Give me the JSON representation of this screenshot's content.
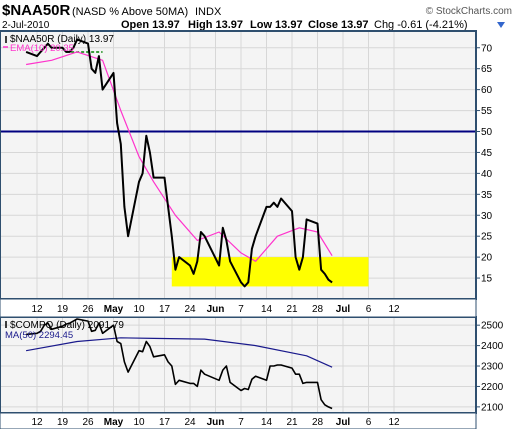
{
  "header": {
    "symbol": "$NAA50R",
    "description": "(NASD % Above 50MA)",
    "exchange": "INDX",
    "watermark": "© StockCharts.com",
    "date": "2-Jul-2010",
    "open": "Open 13.97",
    "high": "High 13.97",
    "low": "Low 13.97",
    "close": "Close 13.97",
    "chg": "Chg -0.61 (-4.21%)",
    "chg_arrow_icon": "down-triangle-icon"
  },
  "colors": {
    "frame": "#2f4f6f",
    "panel_bg": "#f4f4f4",
    "grid": "#d7d7d7",
    "price": "#000000",
    "ema": "#ff33cc",
    "ref_line": "#000080",
    "highlight": "#ffff00",
    "dashed": "#008000",
    "ma50": "#1a1a8c",
    "watermark": "#555555"
  },
  "x_axis": {
    "labels": [
      "12",
      "19",
      "26",
      "May",
      "10",
      "17",
      "24",
      "Jun",
      "7",
      "14",
      "21",
      "28",
      "Jul",
      "6",
      "12"
    ],
    "bold": [
      "May",
      "Jun",
      "Jul"
    ]
  },
  "chart_data": [
    {
      "type": "line",
      "title": "$NAA50R (Daily) 13.97",
      "legend": [
        "$NAA50R (Daily) 13.97",
        "EMA(10) 20.35"
      ],
      "ylim": [
        10,
        74
      ],
      "y_ticks": [
        15,
        20,
        25,
        30,
        35,
        40,
        45,
        50,
        55,
        60,
        65,
        70
      ],
      "reference_line": 50,
      "highlight_band": {
        "y": [
          13,
          20
        ],
        "x_start": "2010-05-19",
        "x_end": "2010-07-12"
      },
      "dashed_line": {
        "y": 69,
        "x_start": "2010-04-20",
        "x_end": "2010-04-30"
      },
      "series": [
        {
          "name": "$NAA50R (Daily) 13.97",
          "x": [
            "2010-04-09",
            "2010-04-12",
            "2010-04-13",
            "2010-04-14",
            "2010-04-15",
            "2010-04-16",
            "2010-04-19",
            "2010-04-20",
            "2010-04-21",
            "2010-04-22",
            "2010-04-23",
            "2010-04-26",
            "2010-04-27",
            "2010-04-28",
            "2010-04-29",
            "2010-04-30",
            "2010-05-03",
            "2010-05-04",
            "2010-05-05",
            "2010-05-06",
            "2010-05-07",
            "2010-05-10",
            "2010-05-11",
            "2010-05-12",
            "2010-05-13",
            "2010-05-14",
            "2010-05-17",
            "2010-05-18",
            "2010-05-19",
            "2010-05-20",
            "2010-05-21",
            "2010-05-24",
            "2010-05-25",
            "2010-05-26",
            "2010-05-27",
            "2010-05-28",
            "2010-06-01",
            "2010-06-02",
            "2010-06-03",
            "2010-06-04",
            "2010-06-07",
            "2010-06-08",
            "2010-06-09",
            "2010-06-10",
            "2010-06-11",
            "2010-06-14",
            "2010-06-15",
            "2010-06-16",
            "2010-06-17",
            "2010-06-18",
            "2010-06-21",
            "2010-06-22",
            "2010-06-23",
            "2010-06-24",
            "2010-06-25",
            "2010-06-28",
            "2010-06-29",
            "2010-06-30",
            "2010-07-01",
            "2010-07-02"
          ],
          "values": [
            69,
            68,
            69,
            70,
            71,
            70,
            70,
            69,
            69,
            70,
            72,
            71,
            65,
            64,
            68,
            60,
            64,
            52,
            47,
            32,
            25,
            38,
            40,
            49,
            45,
            39,
            39,
            32,
            25,
            17,
            20,
            18,
            16,
            19,
            26,
            25,
            18,
            27,
            24,
            19,
            14,
            13,
            14,
            22,
            25,
            32,
            32,
            33,
            32,
            34,
            31,
            20,
            17,
            20,
            29,
            28,
            17,
            16,
            14.6,
            13.97
          ]
        },
        {
          "name": "EMA(10) 20.35",
          "x": [
            "2010-04-09",
            "2010-04-16",
            "2010-04-23",
            "2010-04-30",
            "2010-05-05",
            "2010-05-10",
            "2010-05-14",
            "2010-05-20",
            "2010-05-26",
            "2010-06-01",
            "2010-06-07",
            "2010-06-11",
            "2010-06-17",
            "2010-06-23",
            "2010-06-28",
            "2010-07-02"
          ],
          "values": [
            66,
            67,
            69,
            67,
            55,
            44,
            38,
            30,
            24,
            26,
            21,
            19,
            25,
            27,
            26,
            20.35
          ]
        }
      ]
    },
    {
      "type": "line",
      "title": "$COMPQ (Daily) 2091.79",
      "legend": [
        "$COMPQ (Daily) 2091.79",
        "MA(50) 2294.45"
      ],
      "ylim": [
        2070,
        2540
      ],
      "y_ticks": [
        2100,
        2200,
        2300,
        2400,
        2500
      ],
      "series": [
        {
          "name": "$COMPQ (Daily) 2091.79",
          "x": [
            "2010-04-09",
            "2010-04-12",
            "2010-04-13",
            "2010-04-14",
            "2010-04-15",
            "2010-04-16",
            "2010-04-19",
            "2010-04-20",
            "2010-04-21",
            "2010-04-22",
            "2010-04-23",
            "2010-04-26",
            "2010-04-27",
            "2010-04-28",
            "2010-04-29",
            "2010-04-30",
            "2010-05-03",
            "2010-05-04",
            "2010-05-05",
            "2010-05-06",
            "2010-05-07",
            "2010-05-10",
            "2010-05-11",
            "2010-05-12",
            "2010-05-13",
            "2010-05-14",
            "2010-05-17",
            "2010-05-18",
            "2010-05-19",
            "2010-05-20",
            "2010-05-21",
            "2010-05-24",
            "2010-05-25",
            "2010-05-26",
            "2010-05-27",
            "2010-05-28",
            "2010-06-01",
            "2010-06-02",
            "2010-06-03",
            "2010-06-04",
            "2010-06-07",
            "2010-06-08",
            "2010-06-09",
            "2010-06-10",
            "2010-06-11",
            "2010-06-14",
            "2010-06-15",
            "2010-06-16",
            "2010-06-17",
            "2010-06-18",
            "2010-06-21",
            "2010-06-22",
            "2010-06-23",
            "2010-06-24",
            "2010-06-25",
            "2010-06-28",
            "2010-06-29",
            "2010-06-30",
            "2010-07-01",
            "2010-07-02"
          ],
          "values": [
            2455,
            2460,
            2470,
            2500,
            2510,
            2480,
            2495,
            2505,
            2510,
            2520,
            2530,
            2520,
            2470,
            2475,
            2510,
            2460,
            2500,
            2420,
            2410,
            2320,
            2270,
            2375,
            2370,
            2420,
            2395,
            2345,
            2355,
            2320,
            2300,
            2210,
            2230,
            2215,
            2215,
            2200,
            2280,
            2260,
            2230,
            2280,
            2300,
            2220,
            2180,
            2190,
            2185,
            2235,
            2250,
            2230,
            2300,
            2300,
            2305,
            2305,
            2290,
            2260,
            2260,
            2215,
            2220,
            2220,
            2135,
            2110,
            2100,
            2091.79
          ]
        },
        {
          "name": "MA(50) 2294.45",
          "x": [
            "2010-04-09",
            "2010-04-23",
            "2010-05-05",
            "2010-05-14",
            "2010-05-28",
            "2010-06-11",
            "2010-06-25",
            "2010-07-02"
          ],
          "values": [
            2375,
            2420,
            2438,
            2435,
            2432,
            2400,
            2350,
            2294.45
          ]
        }
      ]
    }
  ]
}
